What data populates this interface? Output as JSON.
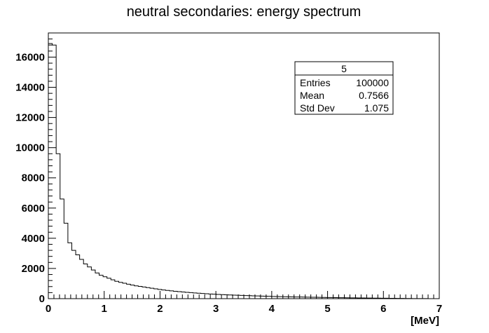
{
  "chart_data": {
    "type": "histogram",
    "title": "neutral secondaries: energy spectrum",
    "xlabel": "[MeV]",
    "ylabel": "",
    "xlim": [
      0,
      7
    ],
    "ylim": [
      0,
      17600
    ],
    "x_ticks": [
      "0",
      "1",
      "2",
      "3",
      "4",
      "5",
      "6",
      "7"
    ],
    "y_ticks": [
      "0",
      "2000",
      "4000",
      "6000",
      "8000",
      "10000",
      "12000",
      "14000",
      "16000"
    ],
    "x_tick_values": [
      0,
      1,
      2,
      3,
      4,
      5,
      6,
      7
    ],
    "y_tick_values": [
      0,
      2000,
      4000,
      6000,
      8000,
      10000,
      12000,
      14000,
      16000
    ],
    "bin_edges_start": 0,
    "bin_width": 0.07,
    "values": [
      16900,
      16800,
      9600,
      6600,
      5000,
      3700,
      3200,
      2900,
      2600,
      2300,
      2100,
      1900,
      1700,
      1550,
      1450,
      1350,
      1250,
      1150,
      1080,
      1020,
      960,
      900,
      850,
      810,
      770,
      730,
      690,
      650,
      610,
      575,
      545,
      515,
      490,
      465,
      440,
      420,
      400,
      380,
      360,
      340,
      325,
      310,
      295,
      280,
      265,
      255,
      245,
      235,
      225,
      215,
      205,
      195,
      185,
      178,
      170,
      162,
      155,
      148,
      142,
      136,
      130,
      124,
      118,
      113,
      108,
      103,
      98,
      94,
      90,
      86,
      82,
      78,
      74,
      70,
      66,
      62,
      58,
      55,
      52,
      49,
      46,
      43,
      40,
      37,
      34,
      31,
      28,
      25,
      22,
      19,
      16,
      13,
      10,
      8,
      6,
      4,
      3,
      2,
      1,
      0
    ],
    "grid": false,
    "line_color": "#000000",
    "stats_box": {
      "name": "5",
      "rows": [
        {
          "label": "Entries",
          "value": "100000"
        },
        {
          "label": "Mean",
          "value": "0.7566"
        },
        {
          "label": "Std Dev",
          "value": "1.075"
        }
      ]
    }
  }
}
